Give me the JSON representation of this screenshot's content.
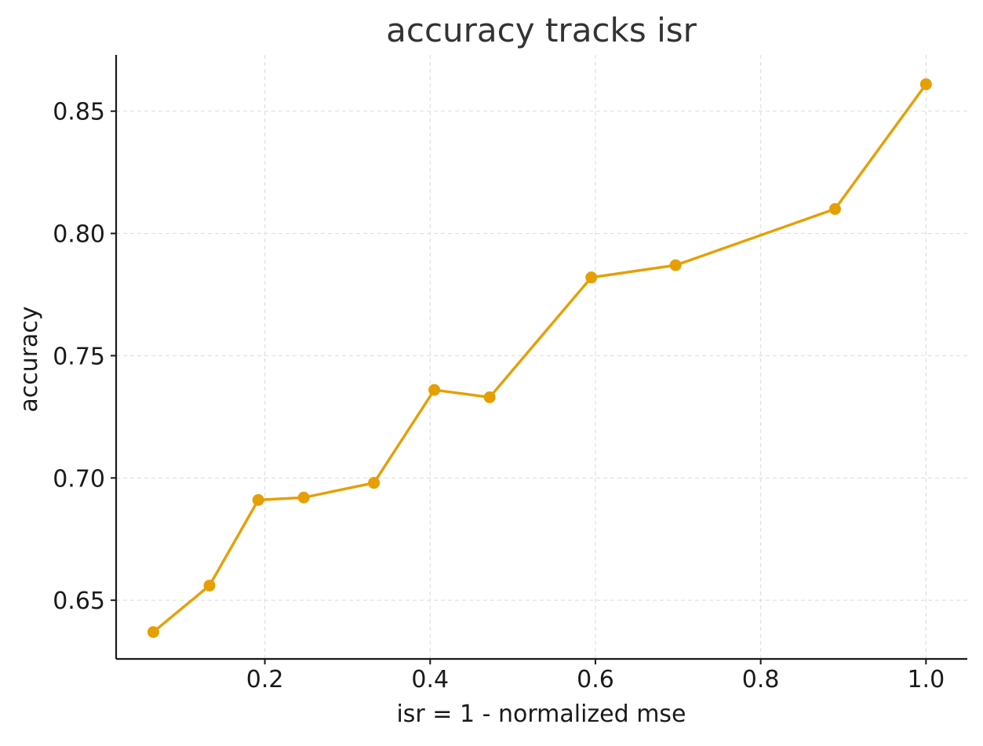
{
  "chart_data": {
    "type": "line",
    "title": "accuracy tracks isr",
    "xlabel": "isr = 1 - normalized mse",
    "ylabel": "accuracy",
    "xlim": [
      0.02,
      1.05
    ],
    "ylim": [
      0.626,
      0.873
    ],
    "xticks": [
      0.2,
      0.4,
      0.6,
      0.8,
      1.0
    ],
    "xtick_labels": [
      "0.2",
      "0.4",
      "0.6",
      "0.8",
      "1.0"
    ],
    "yticks": [
      0.65,
      0.7,
      0.75,
      0.8,
      0.85
    ],
    "ytick_labels": [
      "0.65",
      "0.70",
      "0.75",
      "0.80",
      "0.85"
    ],
    "grid": true,
    "series": [
      {
        "color": "#E69F00",
        "marker": "circle",
        "points": [
          {
            "x": 0.065,
            "y": 0.637
          },
          {
            "x": 0.133,
            "y": 0.656
          },
          {
            "x": 0.192,
            "y": 0.691
          },
          {
            "x": 0.247,
            "y": 0.692
          },
          {
            "x": 0.332,
            "y": 0.698
          },
          {
            "x": 0.405,
            "y": 0.736
          },
          {
            "x": 0.472,
            "y": 0.733
          },
          {
            "x": 0.595,
            "y": 0.782
          },
          {
            "x": 0.697,
            "y": 0.787
          },
          {
            "x": 0.89,
            "y": 0.81
          },
          {
            "x": 1.0,
            "y": 0.861
          }
        ]
      }
    ],
    "colors": {
      "axis": "#1a1a1a",
      "grid": "#e0e0e0",
      "title": "#333333",
      "text": "#1a1a1a"
    }
  }
}
